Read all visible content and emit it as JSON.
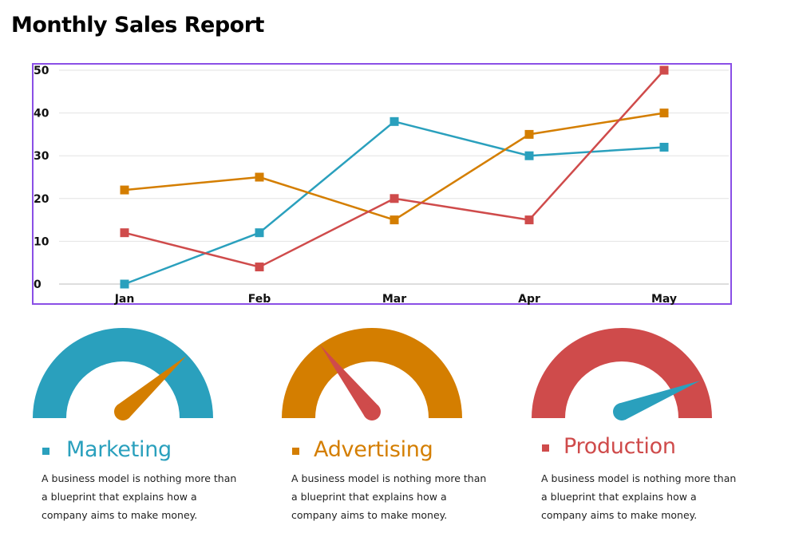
{
  "page": {
    "title": "Monthly Sales Report"
  },
  "colors": {
    "marketing": "#2aa0bd",
    "advertising": "#d47e00",
    "production": "#cf4b4b",
    "frame": "#8a4fe6",
    "grid": "#e2e2e2"
  },
  "chart_data": {
    "type": "line",
    "categories": [
      "Jan",
      "Feb",
      "Mar",
      "Apr",
      "May"
    ],
    "series": [
      {
        "color": "#2aa0bd",
        "values": [
          0,
          12,
          38,
          30,
          32
        ]
      },
      {
        "color": "#d47e00",
        "values": [
          22,
          25,
          15,
          35,
          40
        ]
      },
      {
        "color": "#cf4b4b",
        "values": [
          12,
          4,
          20,
          15,
          50
        ]
      }
    ],
    "ylim": [
      0,
      50
    ],
    "yticks": [
      "0",
      "10",
      "20",
      "30",
      "40",
      "50"
    ],
    "grid": true,
    "title": "",
    "xlabel": "",
    "ylabel": ""
  },
  "gauges": [
    {
      "arc_color": "#2aa0bd",
      "needle_color": "#d47e00",
      "level_percent": 77
    },
    {
      "arc_color": "#d47e00",
      "needle_color": "#cf4b4b",
      "level_percent": 29
    },
    {
      "arc_color": "#cf4b4b",
      "needle_color": "#2aa0bd",
      "level_percent": 88
    }
  ],
  "sections": [
    {
      "title": "Marketing",
      "color": "#2aa0bd",
      "description": "A business model is nothing more than a blueprint that explains how a company aims to make money."
    },
    {
      "title": "Advertising",
      "color": "#d47e00",
      "description": "A business model is nothing more than a blueprint that explains how a company aims to make money."
    },
    {
      "title": "Production",
      "color": "#cf4b4b",
      "description": "A business model is nothing more than a blueprint that explains how a company aims to make money."
    }
  ]
}
